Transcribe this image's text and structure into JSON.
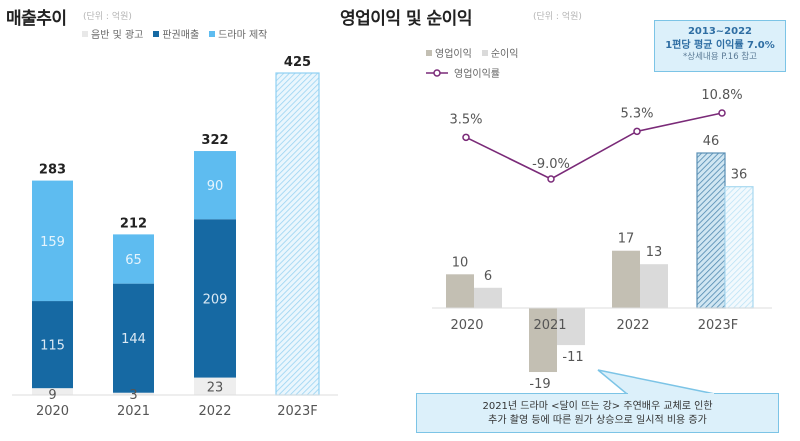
{
  "colors": {
    "music_ads": "#eeeeee",
    "licensing": "#1669a3",
    "drama": "#5ebcf0",
    "forecast_hatch": "#8fd0f2",
    "op_income": "#c3bfb3",
    "net_income": "#dadada",
    "margin_line": "#7a2a78",
    "callout_bg": "#dcf0fa",
    "callout_border": "#7cc4e6"
  },
  "chart_data": [
    {
      "type": "bar",
      "stacked": true,
      "title": "매출추이",
      "unit_label": "(단위 : 억원)",
      "categories": [
        "2020",
        "2021",
        "2022",
        "2023F"
      ],
      "series": [
        {
          "name": "음반 및 광고",
          "values": [
            9,
            3,
            23,
            null
          ]
        },
        {
          "name": "판권매출",
          "values": [
            115,
            144,
            209,
            null
          ]
        },
        {
          "name": "드라마 제작",
          "values": [
            159,
            65,
            90,
            null
          ]
        }
      ],
      "totals": [
        283,
        212,
        322,
        425
      ],
      "forecast": {
        "category": "2023F",
        "total": 425,
        "style": "hatched"
      },
      "ylim": [
        0,
        425
      ],
      "grid": false,
      "legend": "top"
    },
    {
      "type": "bar",
      "title": "영업이익 및 순이익",
      "unit_label": "(단위 : 억원)",
      "categories": [
        "2020",
        "2021",
        "2022",
        "2023F"
      ],
      "series": [
        {
          "name": "영업이익",
          "values": [
            10,
            -19,
            17,
            46
          ]
        },
        {
          "name": "순이익",
          "values": [
            6,
            -11,
            13,
            36
          ]
        }
      ],
      "line_series": {
        "name": "영업이익률",
        "values": [
          3.5,
          -9.0,
          5.3,
          10.8
        ],
        "labels": [
          "3.5%",
          "-9.0%",
          "5.3%",
          "10.8%"
        ]
      },
      "forecast": {
        "category": "2023F",
        "style": "hatched"
      },
      "grid": false,
      "legend": "top-left"
    }
  ],
  "left": {
    "title": "매출추이",
    "unit": "(단위 : 억원)",
    "legend": [
      "음반 및 광고",
      "판권매출",
      "드라마 제작"
    ]
  },
  "right": {
    "title": "영업이익 및 순이익",
    "unit": "(단위 : 억원)",
    "legend": [
      "영업이익",
      "순이익",
      "영업이익률"
    ],
    "infobox": {
      "line1": "2013~2022",
      "line2": "1편당 평균 이익률 7.0%",
      "line3": "*상세내용 P.16 참고"
    },
    "callout": {
      "line1": "2021년 드라마 <달이 뜨는 강> 주연배우 교체로 인한",
      "line2": "추가 촬영 등에 따른 원가 상승으로 일시적 비용 증가"
    }
  }
}
